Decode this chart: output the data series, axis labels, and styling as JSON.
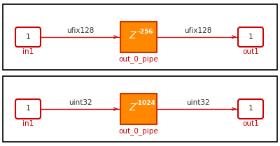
{
  "subsystems": [
    {
      "signal_label_left": "ufix128",
      "signal_label_right": "ufix128",
      "delay_exp": "-256",
      "block_label": "out_0_pipe",
      "port_label_left": "in1",
      "port_label_right": "out1"
    },
    {
      "signal_label_left": "uint32",
      "signal_label_right": "uint32",
      "delay_exp": "-1024",
      "block_label": "out_0_pipe",
      "port_label_left": "in1",
      "port_label_right": "out1"
    }
  ],
  "border_color": "#cc0000",
  "signal_color": "#cc0000",
  "port_fill": "#ffffff",
  "port_stroke": "#cc0000",
  "delay_fill": "#ff8800",
  "delay_stroke": "#cc3300",
  "text_color_dark": "#333333",
  "text_color_red": "#cc0000",
  "background": "#ffffff",
  "outer_border_color": "#000000"
}
